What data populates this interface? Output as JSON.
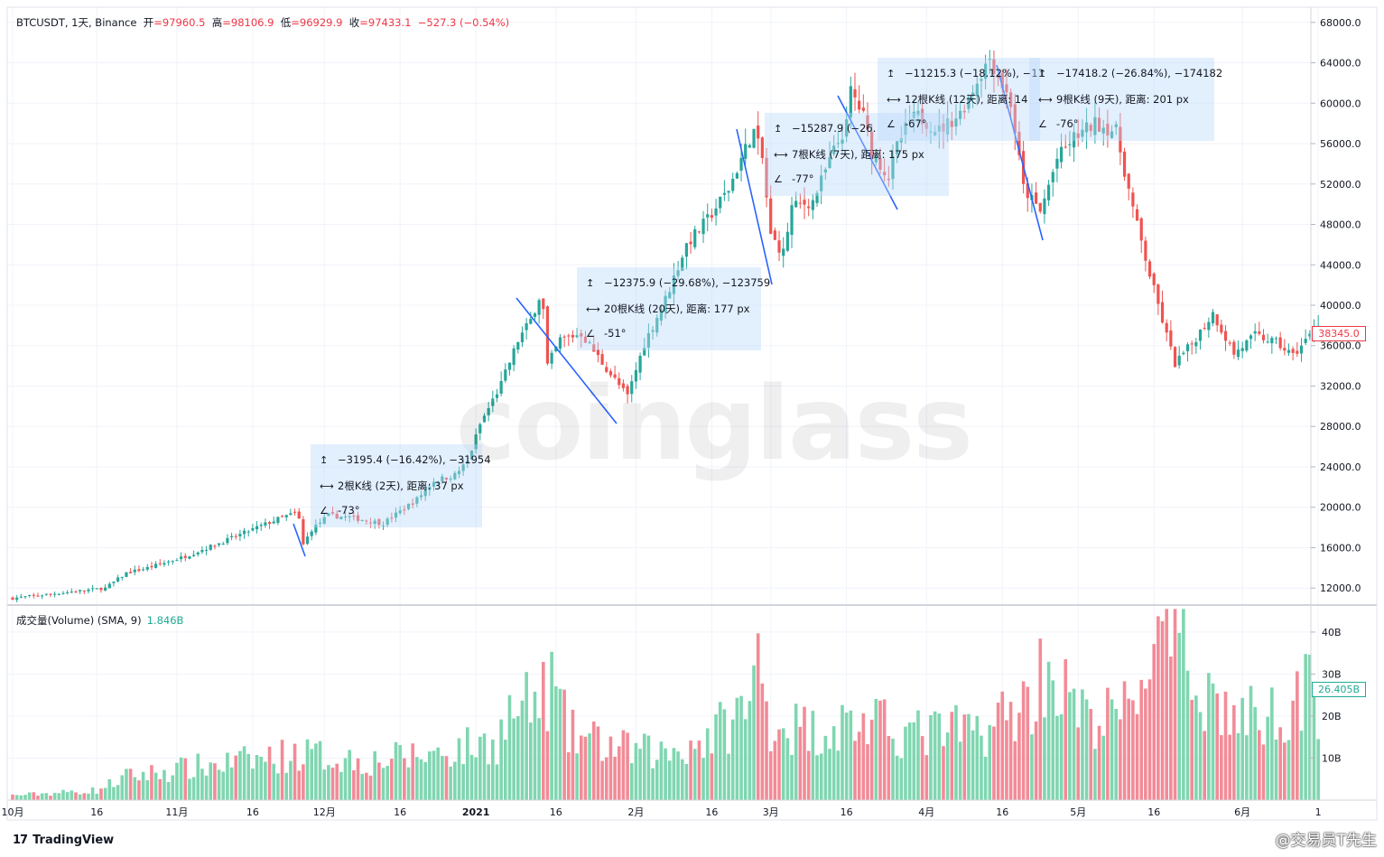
{
  "header": {
    "symbol": "BTCUSDT, 1天, Binance",
    "open_label": "开",
    "open": "=97960.5",
    "high_label": "高",
    "high": "=98106.9",
    "low_label": "低",
    "low": "=96929.9",
    "close_label": "收",
    "close": "=97433.1",
    "change": "−527.3 (−0.54%)"
  },
  "volume_indicator": {
    "label": "成交量(Volume) (SMA, 9)",
    "value": "1.846B"
  },
  "last_price_tag": "38345.0",
  "last_volume_tag": "26.405B",
  "footer": {
    "brand": "TradingView",
    "credit": "@交易员T先生"
  },
  "watermark": "coinglass",
  "colors": {
    "up": "#26a69a",
    "down": "#ef5350",
    "vol_up": "#7fd6b0",
    "vol_down": "#f28b97",
    "measure_line": "#2962ff",
    "measure_box": "#bbd9fb"
  },
  "measurements": [
    {
      "price_change": "−3195.4 (−16.42%), −31954",
      "bars": "2根K线 (2天), 距离: 37 px",
      "angle": "-73°"
    },
    {
      "price_change": "−12375.9 (−29.68%), −123759",
      "bars": "20根K线 (20天), 距离: 177 px",
      "angle": "-51°"
    },
    {
      "price_change": "−15287.9 (−26.",
      "bars": "7根K线 (7天), 距离: 175 px",
      "angle": "-77°"
    },
    {
      "price_change": "−11215.3 (−18.12%), −11",
      "bars": "12根K线 (12天), 距离: 14",
      "angle": "-67°"
    },
    {
      "price_change": "−17418.2 (−26.84%), −174182",
      "bars": "9根K线 (9天), 距离: 201 px",
      "angle": "-76°"
    }
  ],
  "chart_data": {
    "type": "candlestick",
    "price_axis": {
      "ylim": [
        10500,
        69500
      ],
      "ticks": [
        "68000.0",
        "64000.0",
        "60000.0",
        "56000.0",
        "52000.0",
        "48000.0",
        "44000.0",
        "40000.0",
        "36000.0",
        "32000.0",
        "28000.0",
        "24000.0",
        "20000.0",
        "16000.0",
        "12000.0"
      ]
    },
    "volume_axis": {
      "ylim": [
        0,
        46
      ],
      "unit": "B",
      "ticks": [
        "40B",
        "30B",
        "20B",
        "10B"
      ]
    },
    "x_ticks": [
      "10月",
      "16",
      "11月",
      "16",
      "12月",
      "16",
      "2021",
      "16",
      "2月",
      "16",
      "3月",
      "16",
      "4月",
      "16",
      "5月",
      "16",
      "6月",
      "1"
    ],
    "close_path": [
      [
        0,
        11000
      ],
      [
        13,
        11600
      ],
      [
        22,
        12000
      ],
      [
        27,
        13500
      ],
      [
        32,
        14000
      ],
      [
        40,
        15000
      ],
      [
        50,
        16600
      ],
      [
        58,
        18000
      ],
      [
        64,
        19000
      ],
      [
        67,
        19400
      ],
      [
        68,
        18800
      ],
      [
        69,
        16300
      ],
      [
        71,
        17800
      ],
      [
        75,
        19200
      ],
      [
        80,
        19000
      ],
      [
        88,
        18400
      ],
      [
        96,
        20800
      ],
      [
        100,
        22600
      ],
      [
        105,
        23200
      ],
      [
        108,
        24500
      ],
      [
        111,
        28200
      ],
      [
        116,
        32200
      ],
      [
        120,
        36500
      ],
      [
        123,
        38500
      ],
      [
        125,
        40800
      ],
      [
        126,
        39500
      ],
      [
        127,
        34000
      ],
      [
        130,
        36600
      ],
      [
        135,
        37200
      ],
      [
        140,
        34300
      ],
      [
        145,
        31500
      ],
      [
        146,
        31000
      ],
      [
        150,
        36200
      ],
      [
        155,
        40600
      ],
      [
        160,
        46000
      ],
      [
        165,
        48500
      ],
      [
        170,
        51500
      ],
      [
        175,
        56500
      ],
      [
        176,
        57200
      ],
      [
        178,
        54500
      ],
      [
        180,
        46800
      ],
      [
        183,
        45200
      ],
      [
        185,
        49700
      ],
      [
        190,
        50300
      ],
      [
        195,
        55300
      ],
      [
        198,
        57800
      ],
      [
        199,
        61300
      ],
      [
        202,
        58700
      ],
      [
        204,
        55200
      ],
      [
        208,
        52700
      ],
      [
        210,
        55700
      ],
      [
        213,
        58300
      ],
      [
        215,
        58700
      ],
      [
        220,
        57300
      ],
      [
        225,
        59000
      ],
      [
        230,
        63000
      ],
      [
        232,
        64500
      ],
      [
        237,
        60000
      ],
      [
        240,
        51600
      ],
      [
        244,
        49200
      ],
      [
        248,
        54500
      ],
      [
        252,
        56600
      ],
      [
        257,
        58000
      ],
      [
        262,
        57200
      ],
      [
        266,
        49500
      ],
      [
        270,
        43000
      ],
      [
        274,
        37000
      ],
      [
        276,
        34200
      ],
      [
        280,
        36200
      ],
      [
        285,
        39200
      ],
      [
        290,
        35200
      ],
      [
        295,
        37000
      ],
      [
        300,
        36300
      ],
      [
        304,
        35000
      ],
      [
        308,
        37000
      ],
      [
        310,
        38345
      ]
    ],
    "volume_path": [
      [
        0,
        1.2
      ],
      [
        20,
        2.5
      ],
      [
        27,
        6
      ],
      [
        40,
        8
      ],
      [
        55,
        10
      ],
      [
        68,
        12
      ],
      [
        85,
        10
      ],
      [
        100,
        12
      ],
      [
        115,
        15
      ],
      [
        118,
        22
      ],
      [
        125,
        25
      ],
      [
        128,
        30
      ],
      [
        132,
        17
      ],
      [
        145,
        13
      ],
      [
        155,
        12
      ],
      [
        165,
        16
      ],
      [
        175,
        24
      ],
      [
        177,
        36
      ],
      [
        180,
        20
      ],
      [
        190,
        18
      ],
      [
        200,
        20
      ],
      [
        215,
        17
      ],
      [
        230,
        18
      ],
      [
        242,
        26
      ],
      [
        245,
        35
      ],
      [
        255,
        20
      ],
      [
        265,
        23
      ],
      [
        270,
        38
      ],
      [
        276,
        40
      ],
      [
        282,
        30
      ],
      [
        290,
        21
      ],
      [
        300,
        22
      ],
      [
        305,
        28
      ],
      [
        310,
        26.4
      ]
    ]
  }
}
